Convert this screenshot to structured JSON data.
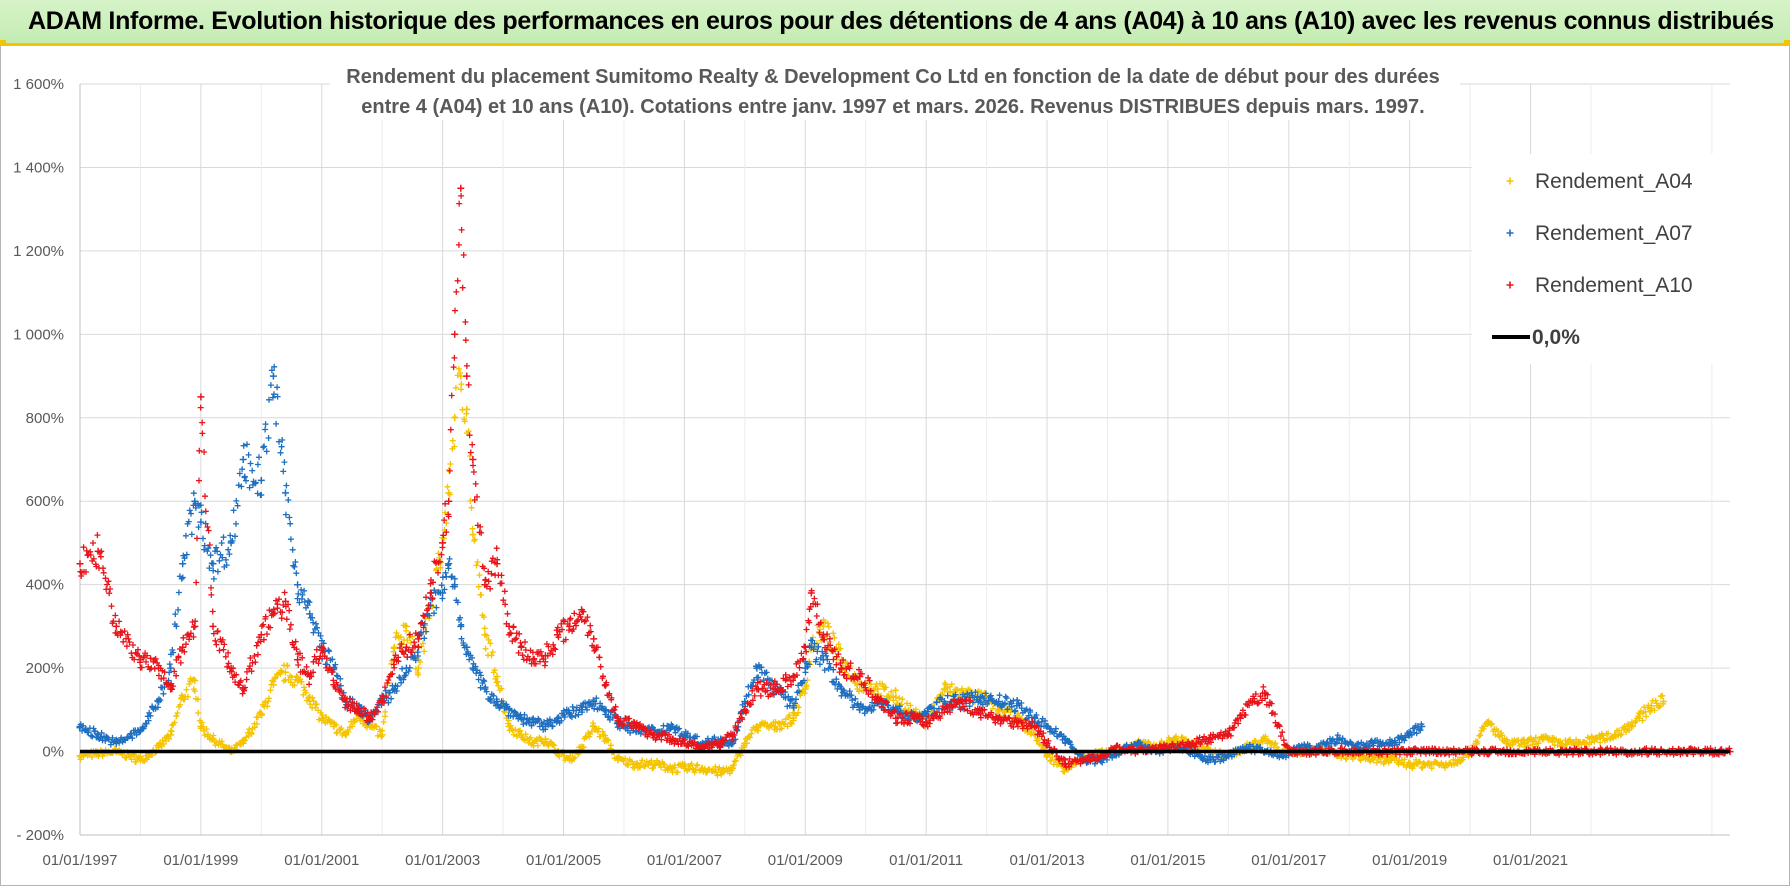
{
  "header": {
    "title": "ADAM Informe. Evolution historique des performances en euros pour des détentions de 4 ans (A04) à 10 ans (A10) avec les revenus connus distribués"
  },
  "chart_data": {
    "type": "scatter",
    "title_line1": "Rendement du placement Sumitomo Realty & Development Co Ltd en fonction de la date de début pour des durées",
    "title_line2": "entre 4 (A04) et 10 ans (A10). Cotations entre janv. 1997 et mars. 2026. Revenus DISTRIBUES depuis mars. 1997.",
    "xlabel": "",
    "ylabel": "",
    "xlim": [
      1997.0,
      2024.3
    ],
    "ylim": [
      -200,
      1600
    ],
    "y_ticks": [
      -200,
      0,
      200,
      400,
      600,
      800,
      1000,
      1200,
      1400,
      1600
    ],
    "y_tick_labels": [
      "- 200%",
      "0%",
      "200%",
      "400%",
      "600%",
      "800%",
      "1 000%",
      "1 200%",
      "1 400%",
      "1 600%"
    ],
    "x_ticks": [
      1997,
      1999,
      2001,
      2003,
      2005,
      2007,
      2009,
      2011,
      2013,
      2015,
      2017,
      2019,
      2021
    ],
    "x_tick_labels": [
      "01/01/1997",
      "01/01/1999",
      "01/01/2001",
      "01/01/2003",
      "01/01/2005",
      "01/01/2007",
      "01/01/2009",
      "01/01/2011",
      "01/01/2013",
      "01/01/2015",
      "01/01/2017",
      "01/01/2019",
      "01/01/2021"
    ],
    "grid": true,
    "legend_position": "top-right",
    "series": [
      {
        "name": "Rendement_A04",
        "color": "#f5c400",
        "marker": "plus",
        "x": [
          1997.0,
          1997.3,
          1997.6,
          1998.0,
          1998.3,
          1998.5,
          1998.7,
          1998.9,
          1999.0,
          1999.2,
          1999.5,
          1999.7,
          2000.0,
          2000.2,
          2000.4,
          2000.6,
          2000.8,
          2001.0,
          2001.2,
          2001.4,
          2001.6,
          2001.8,
          2002.0,
          2002.2,
          2002.4,
          2002.6,
          2002.8,
          2003.0,
          2003.1,
          2003.2,
          2003.3,
          2003.4,
          2003.5,
          2003.7,
          2003.9,
          2004.1,
          2004.3,
          2004.5,
          2004.7,
          2004.9,
          2005.1,
          2005.3,
          2005.5,
          2005.7,
          2005.9,
          2006.2,
          2006.5,
          2006.8,
          2007.0,
          2007.3,
          2007.6,
          2007.8,
          2008.0,
          2008.2,
          2008.5,
          2008.8,
          2009.0,
          2009.1,
          2009.3,
          2009.6,
          2009.9,
          2010.2,
          2010.5,
          2010.8,
          2011.0,
          2011.3,
          2011.6,
          2011.9,
          2012.2,
          2012.5,
          2012.8,
          2013.0,
          2013.3,
          2013.6,
          2013.9,
          2014.2,
          2014.5,
          2014.8,
          2015.1,
          2015.4,
          2015.7,
          2016.0,
          2016.3,
          2016.6,
          2016.9,
          2017.2,
          2017.5,
          2017.8,
          2018.1,
          2018.4,
          2018.7,
          2019.0,
          2019.3,
          2019.6,
          2019.8,
          2020.0,
          2020.3,
          2020.6,
          2020.9,
          2021.2,
          2021.5,
          2021.8,
          2022.1,
          2022.4,
          2022.6,
          2022.8,
          2023.0,
          2023.2
        ],
        "y": [
          -10,
          -5,
          0,
          -20,
          10,
          40,
          130,
          170,
          60,
          30,
          0,
          20,
          90,
          160,
          190,
          170,
          130,
          80,
          60,
          40,
          90,
          60,
          40,
          250,
          300,
          200,
          350,
          500,
          620,
          800,
          900,
          820,
          520,
          280,
          180,
          60,
          40,
          20,
          30,
          0,
          -20,
          10,
          60,
          30,
          -20,
          -30,
          -30,
          -40,
          -40,
          -40,
          -50,
          -40,
          20,
          60,
          60,
          80,
          150,
          250,
          300,
          220,
          160,
          150,
          130,
          90,
          70,
          150,
          140,
          130,
          100,
          80,
          40,
          -10,
          -40,
          -20,
          0,
          0,
          20,
          10,
          30,
          20,
          0,
          -10,
          10,
          30,
          0,
          0,
          10,
          -10,
          -10,
          -20,
          -20,
          -30,
          -30,
          -30,
          -20,
          0,
          70,
          20,
          20,
          30,
          20,
          20,
          30,
          40,
          60,
          80,
          110,
          120
        ]
      },
      {
        "name": "Rendement_A07",
        "color": "#1f6fc1",
        "marker": "plus",
        "x": [
          1997.0,
          1997.3,
          1997.6,
          1998.0,
          1998.3,
          1998.5,
          1998.7,
          1998.9,
          1999.0,
          1999.2,
          1999.5,
          1999.7,
          2000.0,
          2000.2,
          2000.4,
          2000.6,
          2000.8,
          2001.0,
          2001.2,
          2001.4,
          2001.6,
          2001.8,
          2002.0,
          2002.2,
          2002.4,
          2002.6,
          2002.8,
          2003.0,
          2003.1,
          2003.2,
          2003.3,
          2003.4,
          2003.5,
          2003.7,
          2003.9,
          2004.1,
          2004.3,
          2004.5,
          2004.7,
          2004.9,
          2005.1,
          2005.3,
          2005.5,
          2005.7,
          2005.9,
          2006.2,
          2006.5,
          2006.8,
          2007.0,
          2007.3,
          2007.6,
          2007.8,
          2008.0,
          2008.2,
          2008.5,
          2008.8,
          2009.0,
          2009.1,
          2009.3,
          2009.6,
          2009.9,
          2010.2,
          2010.5,
          2010.8,
          2011.0,
          2011.3,
          2011.6,
          2011.9,
          2012.2,
          2012.5,
          2012.8,
          2013.0,
          2013.3,
          2013.6,
          2013.9,
          2014.2,
          2014.5,
          2014.8,
          2015.1,
          2015.4,
          2015.7,
          2016.0,
          2016.3,
          2016.6,
          2016.9,
          2017.2,
          2017.5,
          2017.8,
          2018.1,
          2018.4,
          2018.7,
          2019.0,
          2019.2
        ],
        "y": [
          60,
          40,
          20,
          50,
          120,
          200,
          450,
          600,
          550,
          450,
          500,
          700,
          650,
          900,
          620,
          400,
          330,
          250,
          200,
          120,
          100,
          80,
          120,
          150,
          200,
          250,
          350,
          380,
          450,
          400,
          300,
          250,
          200,
          150,
          120,
          100,
          80,
          70,
          60,
          80,
          90,
          100,
          120,
          100,
          70,
          50,
          50,
          60,
          40,
          20,
          30,
          20,
          120,
          200,
          150,
          110,
          200,
          250,
          220,
          150,
          100,
          120,
          100,
          80,
          90,
          120,
          120,
          130,
          120,
          110,
          80,
          60,
          30,
          -20,
          -20,
          0,
          20,
          0,
          10,
          0,
          -20,
          -10,
          10,
          0,
          -10,
          10,
          10,
          30,
          10,
          20,
          20,
          40,
          60
        ]
      },
      {
        "name": "Rendement_A10",
        "color": "#e8141b",
        "marker": "plus",
        "x": [
          1997.0,
          1997.3,
          1997.6,
          1998.0,
          1998.3,
          1998.5,
          1998.7,
          1998.9,
          1999.0,
          1999.2,
          1999.5,
          1999.7,
          2000.0,
          2000.2,
          2000.4,
          2000.6,
          2000.8,
          2001.0,
          2001.2,
          2001.4,
          2001.6,
          2001.8,
          2002.0,
          2002.2,
          2002.4,
          2002.6,
          2002.8,
          2003.0,
          2003.1,
          2003.2,
          2003.3,
          2003.4,
          2003.5,
          2003.7,
          2003.9,
          2004.1,
          2004.3,
          2004.5,
          2004.7,
          2004.9,
          2005.1,
          2005.3,
          2005.5,
          2005.7,
          2005.9,
          2006.2,
          2006.5,
          2006.8,
          2007.0,
          2007.3,
          2007.6,
          2007.8,
          2008.0,
          2008.2,
          2008.5,
          2008.8,
          2009.0,
          2009.1,
          2009.3,
          2009.6,
          2009.9,
          2010.2,
          2010.5,
          2010.8,
          2011.0,
          2011.3,
          2011.6,
          2011.9,
          2012.2,
          2012.5,
          2012.8,
          2013.0,
          2013.3,
          2013.6,
          2013.9,
          2014.2,
          2014.5,
          2014.8,
          2015.1,
          2015.4,
          2015.7,
          2016.0,
          2016.2,
          2016.4,
          2016.6,
          2017.0,
          2017.5,
          2018.0,
          2018.5,
          2019.0,
          2019.5,
          2020.0,
          2020.5,
          2021.0,
          2021.5,
          2022.0,
          2022.5,
          2023.0,
          2023.5,
          2024.0,
          2024.3
        ],
        "y": [
          450,
          480,
          300,
          220,
          200,
          150,
          250,
          300,
          850,
          300,
          200,
          150,
          280,
          330,
          360,
          220,
          180,
          250,
          160,
          120,
          100,
          80,
          120,
          220,
          250,
          270,
          380,
          500,
          600,
          1000,
          1350,
          900,
          700,
          400,
          450,
          300,
          250,
          220,
          230,
          280,
          300,
          340,
          270,
          160,
          80,
          60,
          40,
          30,
          20,
          10,
          20,
          40,
          100,
          150,
          150,
          180,
          250,
          380,
          280,
          200,
          180,
          130,
          80,
          80,
          70,
          100,
          120,
          90,
          80,
          70,
          60,
          20,
          -30,
          -20,
          -10,
          10,
          0,
          10,
          10,
          20,
          30,
          40,
          80,
          120,
          140,
          0,
          0,
          0,
          0,
          0,
          0,
          0,
          0,
          0,
          0,
          0,
          0,
          0,
          0,
          0,
          0
        ]
      },
      {
        "name": "0,0%",
        "color": "#000000",
        "marker": "line",
        "x": [
          1997.0,
          2024.3
        ],
        "y": [
          0,
          0
        ]
      }
    ]
  }
}
